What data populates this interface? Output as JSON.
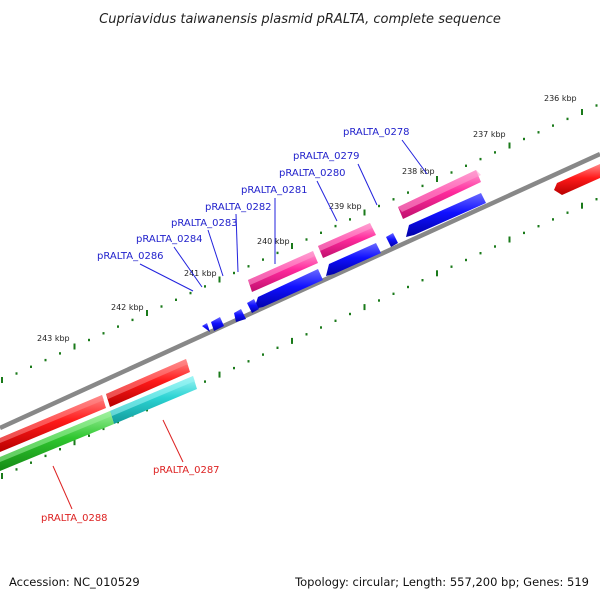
{
  "title": "Cupriavidus taiwanensis plasmid pRALTA, complete sequence",
  "scale": {
    "tick_labels": [
      "236 kbp",
      "237 kbp",
      "238 kbp",
      "239 kbp",
      "240 kbp",
      "241 kbp",
      "242 kbp",
      "243 kbp"
    ]
  },
  "genes": [
    {
      "label": "pRALTA_0278",
      "strand": "reverse",
      "color": "#0000ff"
    },
    {
      "label": "pRALTA_0279",
      "strand": "reverse",
      "color": "#0000ff"
    },
    {
      "label": "pRALTA_0280",
      "strand": "reverse",
      "color": "#0000ff"
    },
    {
      "label": "pRALTA_0281",
      "strand": "reverse",
      "color": "#0000ff"
    },
    {
      "label": "pRALTA_0282",
      "strand": "reverse",
      "color": "#0000ff"
    },
    {
      "label": "pRALTA_0283",
      "strand": "reverse",
      "color": "#0000ff"
    },
    {
      "label": "pRALTA_0284",
      "strand": "reverse",
      "color": "#0000ff"
    },
    {
      "label": "pRALTA_0286",
      "strand": "reverse",
      "color": "#0000ff"
    },
    {
      "label": "pRALTA_0287",
      "strand": "forward",
      "color": "#ff0000"
    },
    {
      "label": "pRALTA_0288",
      "strand": "forward",
      "color": "#ff0000"
    }
  ],
  "colors": {
    "backbone": "#888888",
    "cds_reverse": "#0000ff",
    "cds_forward": "#ff0000",
    "feature_pink": "#ff1f9a",
    "feature_cyan": "#22cccc",
    "feature_green": "#33cc33",
    "tick": "#1a7a1a"
  },
  "footer": {
    "accession": "Accession: NC_010529",
    "summary": "Topology: circular; Length: 557,200 bp; Genes: 519"
  }
}
